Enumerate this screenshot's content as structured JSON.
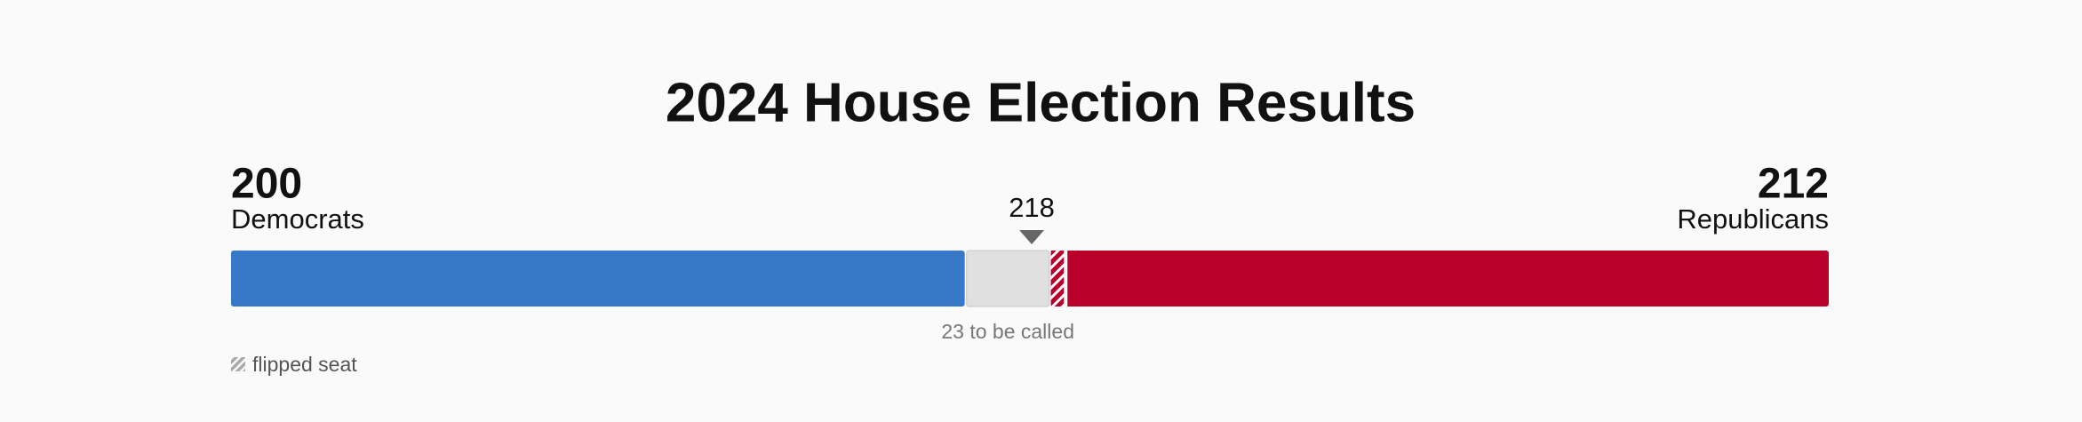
{
  "title": "2024 House Election Results",
  "parties": [
    {
      "name": "Democrats",
      "seats": 200,
      "color": "#3878c9"
    },
    {
      "name": "Republicans",
      "seats": 212,
      "color": "#b8002a",
      "flipped": 4
    }
  ],
  "uncalled": {
    "seats": 23,
    "label": "23 to be called",
    "color": "#e0e0e0"
  },
  "majority": 218,
  "legend": {
    "flipped": "flipped seat"
  }
}
